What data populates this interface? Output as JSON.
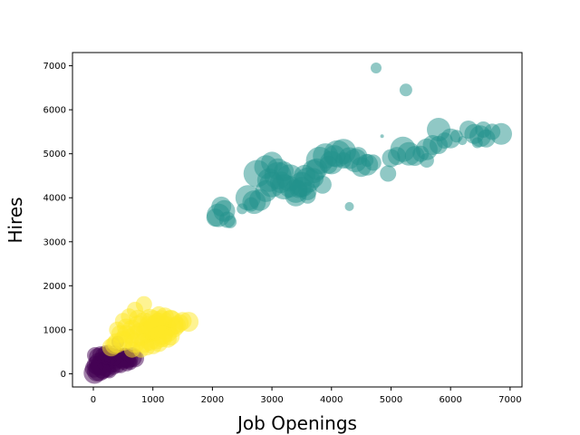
{
  "chart_data": {
    "type": "scatter",
    "title": "",
    "xlabel": "Job Openings",
    "ylabel": "Hires",
    "xlim": [
      -350,
      7200
    ],
    "ylim": [
      -300,
      7300
    ],
    "x_ticks": [
      0,
      1000,
      2000,
      3000,
      4000,
      5000,
      6000,
      7000
    ],
    "y_ticks": [
      0,
      1000,
      2000,
      3000,
      4000,
      5000,
      6000,
      7000
    ],
    "grid": false,
    "legend": "none",
    "point_alpha": 0.5,
    "series": [
      {
        "color": "#440154",
        "points": [
          [
            20,
            20,
            12
          ],
          [
            60,
            50,
            11
          ],
          [
            100,
            80,
            12
          ],
          [
            150,
            120,
            11
          ],
          [
            200,
            160,
            11
          ],
          [
            40,
            200,
            10
          ],
          [
            90,
            250,
            11
          ],
          [
            140,
            300,
            10
          ],
          [
            220,
            280,
            11
          ],
          [
            280,
            320,
            10
          ],
          [
            320,
            250,
            11
          ],
          [
            380,
            300,
            10
          ],
          [
            420,
            350,
            11
          ],
          [
            480,
            330,
            10
          ],
          [
            540,
            360,
            11
          ],
          [
            600,
            340,
            10
          ],
          [
            650,
            380,
            11
          ],
          [
            700,
            350,
            10
          ],
          [
            30,
            420,
            9
          ],
          [
            80,
            380,
            10
          ],
          [
            120,
            440,
            9
          ],
          [
            180,
            400,
            10
          ],
          [
            250,
            380,
            9
          ],
          [
            300,
            420,
            8
          ],
          [
            360,
            460,
            9
          ],
          [
            440,
            420,
            8
          ],
          [
            520,
            410,
            9
          ],
          [
            580,
            300,
            9
          ],
          [
            620,
            250,
            8
          ],
          [
            160,
            60,
            9
          ],
          [
            240,
            100,
            9
          ],
          [
            340,
            140,
            8
          ],
          [
            10,
            120,
            10
          ],
          [
            70,
            150,
            9
          ],
          [
            200,
            480,
            8
          ],
          [
            400,
            200,
            9
          ],
          [
            460,
            180,
            8
          ],
          [
            560,
            220,
            8
          ],
          [
            500,
            280,
            9
          ],
          [
            270,
            60,
            8
          ],
          [
            120,
            200,
            11
          ],
          [
            330,
            380,
            10
          ],
          [
            410,
            720,
            7
          ],
          [
            250,
            560,
            5
          ]
        ]
      },
      {
        "color": "#fde725",
        "points": [
          [
            1100,
            1100,
            14
          ],
          [
            1200,
            1050,
            13
          ],
          [
            1300,
            1150,
            14
          ],
          [
            1000,
            1000,
            13
          ],
          [
            900,
            950,
            12
          ],
          [
            800,
            900,
            13
          ],
          [
            700,
            850,
            12
          ],
          [
            600,
            800,
            11
          ],
          [
            500,
            750,
            11
          ],
          [
            400,
            700,
            11
          ],
          [
            350,
            650,
            10
          ],
          [
            300,
            600,
            10
          ],
          [
            1000,
            1200,
            12
          ],
          [
            1150,
            900,
            12
          ],
          [
            1250,
            950,
            11
          ],
          [
            1050,
            800,
            12
          ],
          [
            950,
            750,
            11
          ],
          [
            850,
            700,
            11
          ],
          [
            750,
            1100,
            11
          ],
          [
            650,
            1000,
            11
          ],
          [
            550,
            1050,
            10
          ],
          [
            450,
            900,
            10
          ],
          [
            1350,
            1050,
            11
          ],
          [
            1400,
            1100,
            10
          ],
          [
            1450,
            1150,
            10
          ],
          [
            1600,
            1180,
            11
          ],
          [
            1500,
            1200,
            10
          ],
          [
            1300,
            1250,
            10
          ],
          [
            1200,
            1300,
            10
          ],
          [
            1100,
            1350,
            9
          ],
          [
            850,
            1580,
            9
          ],
          [
            700,
            1450,
            9
          ],
          [
            600,
            1300,
            9
          ],
          [
            500,
            1200,
            9
          ],
          [
            400,
            1000,
            9
          ],
          [
            1000,
            650,
            10
          ],
          [
            900,
            600,
            9
          ],
          [
            1100,
            700,
            10
          ],
          [
            800,
            550,
            9
          ],
          [
            650,
            550,
            9
          ],
          [
            1250,
            800,
            10
          ],
          [
            950,
            1250,
            11
          ],
          [
            750,
            1250,
            10
          ],
          [
            1150,
            1200,
            12
          ],
          [
            1050,
            1050,
            14
          ],
          [
            950,
            1050,
            13
          ],
          [
            850,
            1150,
            12
          ],
          [
            1150,
            850,
            12
          ],
          [
            1300,
            850,
            10
          ],
          [
            700,
            700,
            11
          ],
          [
            550,
            900,
            10
          ]
        ]
      },
      {
        "color": "#21918c",
        "points": [
          [
            2100,
            3600,
            13
          ],
          [
            2200,
            3700,
            12
          ],
          [
            2150,
            3800,
            11
          ],
          [
            2250,
            3500,
            9
          ],
          [
            2300,
            3450,
            7
          ],
          [
            2050,
            3550,
            10
          ],
          [
            2600,
            4000,
            14
          ],
          [
            2700,
            3900,
            13
          ],
          [
            2750,
            4550,
            15
          ],
          [
            2800,
            3950,
            12
          ],
          [
            2900,
            4150,
            12
          ],
          [
            3000,
            4300,
            14
          ],
          [
            3100,
            4500,
            15
          ],
          [
            3200,
            4250,
            14
          ],
          [
            3300,
            4450,
            15
          ],
          [
            3400,
            4150,
            13
          ],
          [
            3500,
            4300,
            14
          ],
          [
            3600,
            4400,
            14
          ],
          [
            3700,
            4600,
            13
          ],
          [
            3800,
            4850,
            15
          ],
          [
            3900,
            4950,
            14
          ],
          [
            4000,
            4800,
            13
          ],
          [
            4100,
            5000,
            15
          ],
          [
            4200,
            5050,
            14
          ],
          [
            4300,
            4900,
            12
          ],
          [
            4400,
            4850,
            13
          ],
          [
            4500,
            4700,
            11
          ],
          [
            4600,
            4750,
            12
          ],
          [
            2900,
            4700,
            13
          ],
          [
            3000,
            4800,
            12
          ],
          [
            3100,
            4650,
            12
          ],
          [
            3200,
            4600,
            11
          ],
          [
            3300,
            4250,
            12
          ],
          [
            3400,
            4050,
            12
          ],
          [
            3500,
            4250,
            11
          ],
          [
            3600,
            4150,
            10
          ],
          [
            3700,
            4450,
            11
          ],
          [
            3850,
            4300,
            10
          ],
          [
            3950,
            4750,
            10
          ],
          [
            2950,
            4400,
            13
          ],
          [
            4950,
            4550,
            9
          ],
          [
            5000,
            4900,
            10
          ],
          [
            5200,
            5100,
            14
          ],
          [
            5300,
            5000,
            13
          ],
          [
            5400,
            4950,
            11
          ],
          [
            5600,
            5100,
            12
          ],
          [
            5700,
            5200,
            11
          ],
          [
            5800,
            5550,
            13
          ],
          [
            5600,
            4850,
            8
          ],
          [
            5900,
            5300,
            9
          ],
          [
            6100,
            5400,
            7
          ],
          [
            6200,
            5300,
            5
          ],
          [
            6300,
            5550,
            10
          ],
          [
            6400,
            5450,
            11
          ],
          [
            6500,
            5400,
            12
          ],
          [
            6600,
            5350,
            10
          ],
          [
            6700,
            5500,
            9
          ],
          [
            6850,
            5450,
            12
          ],
          [
            6550,
            5550,
            9
          ],
          [
            6000,
            5350,
            11
          ],
          [
            5800,
            5200,
            10
          ],
          [
            5500,
            5000,
            9
          ],
          [
            4700,
            4800,
            9
          ],
          [
            4600,
            4850,
            7
          ],
          [
            4200,
            4850,
            9
          ],
          [
            3450,
            4200,
            10
          ],
          [
            3600,
            4050,
            9
          ],
          [
            4300,
            3800,
            5
          ],
          [
            4750,
            6950,
            6
          ],
          [
            5250,
            6450,
            7
          ],
          [
            4850,
            5400,
            2
          ],
          [
            2500,
            3750,
            6
          ],
          [
            2650,
            3850,
            8
          ],
          [
            3150,
            4350,
            12
          ],
          [
            3550,
            4500,
            12
          ],
          [
            4050,
            4950,
            12
          ],
          [
            3750,
            4650,
            12
          ],
          [
            4450,
            4950,
            10
          ],
          [
            5100,
            4950,
            10
          ],
          [
            6450,
            5250,
            6
          ]
        ]
      }
    ]
  }
}
